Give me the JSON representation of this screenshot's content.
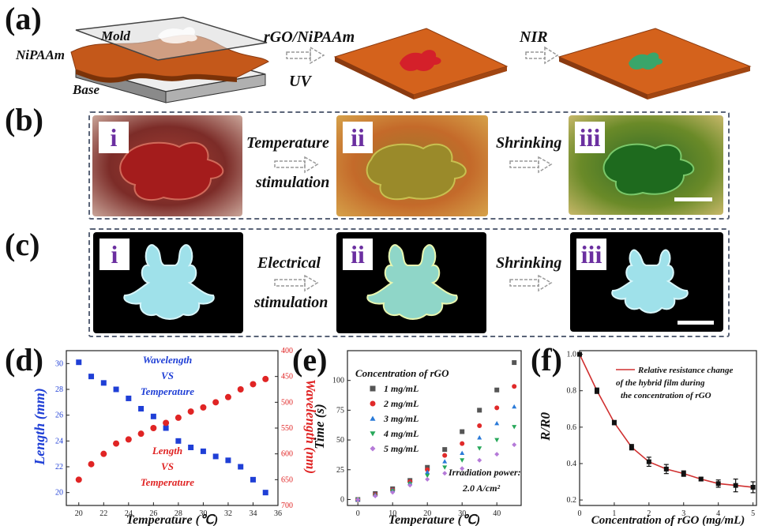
{
  "panel_labels": {
    "a": "(a)",
    "b": "(b)",
    "c": "(c)",
    "d": "(d)",
    "e": "(e)",
    "f": "(f)"
  },
  "panel_a": {
    "mold": "Mold",
    "nipaam": "NiPAAm",
    "base": "Base",
    "step1_top": "rGO/NiPAAm",
    "step1_bottom": "UV",
    "step2": "NIR"
  },
  "panel_b": {
    "i": "i",
    "ii": "ii",
    "iii": "iii",
    "arrow1_line1": "Temperature",
    "arrow1_line2": "stimulation",
    "arrow2": "Shrinking"
  },
  "panel_c": {
    "i": "i",
    "ii": "ii",
    "iii": "iii",
    "arrow1_line1": "Electrical",
    "arrow1_line2": "stimulation",
    "arrow2": "Shrinking"
  },
  "colors": {
    "sheet_orange": "#d4621c",
    "red_shape": "#d4202a",
    "green_shape": "#3aa56a",
    "blue_series": "#1f3fd6",
    "red_series": "#e02424",
    "fit_red": "#d03030"
  },
  "chart_data": [
    {
      "type": "scatter",
      "xlabel": "Temperature (℃)",
      "ylabel": "Length (mm)",
      "y2label": "Wavelength (nm)",
      "xlim": [
        19,
        36
      ],
      "ylim": [
        19,
        31
      ],
      "y2lim": [
        700,
        400
      ],
      "xticks": [
        20,
        22,
        24,
        26,
        28,
        30,
        32,
        34,
        36
      ],
      "yticks": [
        20,
        22,
        24,
        26,
        28,
        30
      ],
      "y2ticks": [
        400,
        450,
        500,
        550,
        600,
        650,
        700
      ],
      "annotations": [
        [
          "Wavelength",
          "VS",
          "Temperature"
        ],
        [
          "Length",
          "VS",
          "Temperature"
        ]
      ],
      "x": [
        20,
        21,
        22,
        23,
        24,
        25,
        26,
        27,
        28,
        29,
        30,
        31,
        32,
        33,
        34,
        35
      ],
      "series": [
        {
          "name": "Length",
          "values": [
            30.1,
            29.0,
            28.5,
            28.0,
            27.3,
            26.5,
            25.9,
            25.0,
            24.0,
            23.5,
            23.2,
            22.8,
            22.5,
            22.0,
            21.0,
            20.0
          ]
        },
        {
          "name": "Wavelength",
          "values": [
            650,
            620,
            600,
            580,
            572,
            561,
            550,
            540,
            530,
            518,
            510,
            500,
            490,
            475,
            465,
            455
          ]
        }
      ]
    },
    {
      "type": "scatter",
      "xlabel": "Temperature (℃)",
      "ylabel": "Time (s)",
      "xlim": [
        -3,
        47
      ],
      "ylim": [
        -5,
        125
      ],
      "xticks": [
        0,
        10,
        20,
        30,
        40
      ],
      "yticks": [
        0,
        25,
        50,
        75,
        100
      ],
      "legend_title": "Concentration of rGO",
      "note_line1": "Irradiation power:",
      "note_line2": "2.0 A/cm²",
      "x": [
        0,
        5,
        10,
        15,
        20,
        25,
        30,
        35,
        40,
        45
      ],
      "series": [
        {
          "name": "1 mg/mL",
          "marker": "square",
          "color": "#555555",
          "values": [
            0,
            5,
            9,
            16,
            27,
            42,
            57,
            75,
            92,
            115
          ]
        },
        {
          "name": "2 mg/mL",
          "marker": "circle",
          "color": "#e02a2a",
          "values": [
            0,
            4,
            8,
            15,
            25,
            37,
            47,
            62,
            77,
            95
          ]
        },
        {
          "name": "3 mg/mL",
          "marker": "triangle-up",
          "color": "#2a7ad8",
          "values": [
            0,
            4,
            8,
            14,
            23,
            32,
            39,
            52,
            64,
            78
          ]
        },
        {
          "name": "4 mg/mL",
          "marker": "triangle-down",
          "color": "#27a85a",
          "values": [
            0,
            3,
            7,
            13,
            20,
            27,
            33,
            43,
            50,
            61
          ]
        },
        {
          "name": "5 mg/mL",
          "marker": "diamond",
          "color": "#b57ad8",
          "values": [
            0,
            3,
            6,
            12,
            17,
            22,
            26,
            33,
            38,
            46
          ]
        }
      ]
    },
    {
      "type": "line",
      "xlabel": "Concentration of rGO (mg/mL)",
      "ylabel": "R/R0",
      "xlim": [
        0,
        5.1
      ],
      "ylim": [
        0.17,
        1.02
      ],
      "xticks": [
        0,
        1,
        2,
        3,
        4,
        5
      ],
      "yticks": [
        0.2,
        0.4,
        0.6,
        0.8,
        1.0
      ],
      "legend": [
        "Relative resistance change",
        "of the hybrid film during",
        "the concentration of rGO"
      ],
      "x": [
        0,
        0.5,
        1.0,
        1.5,
        2.0,
        2.5,
        3.0,
        3.5,
        4.0,
        4.5,
        5.0
      ],
      "values": [
        1.0,
        0.8,
        0.625,
        0.49,
        0.41,
        0.37,
        0.345,
        0.315,
        0.29,
        0.28,
        0.27
      ],
      "errors": [
        0,
        0.015,
        0.012,
        0.015,
        0.025,
        0.025,
        0.015,
        0.01,
        0.02,
        0.035,
        0.03
      ]
    }
  ]
}
